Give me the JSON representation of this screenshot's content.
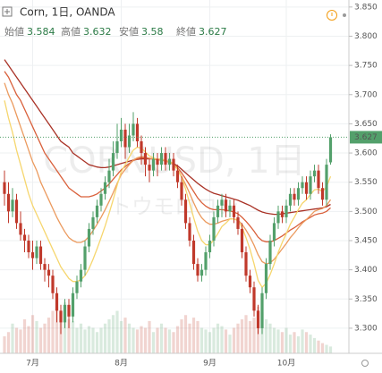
{
  "chart_data": {
    "type": "candlestick",
    "title": "Corn, 1日, OANDA",
    "ohlc_labels": [
      "始値",
      "高値",
      "安値",
      "終値"
    ],
    "watermark": [
      "CORNUSD, 1日",
      "トウモロコシ"
    ],
    "up_color": "#53a06b",
    "down_color": "#c0392b",
    "grid": true,
    "ylim": [
      3.257,
      3.862
    ],
    "yticks": [
      {
        "value": 3.85,
        "label": "3.850"
      },
      {
        "value": 3.8,
        "label": "3.800"
      },
      {
        "value": 3.75,
        "label": "3.750"
      },
      {
        "value": 3.7,
        "label": "3.700"
      },
      {
        "value": 3.65,
        "label": "3.650"
      },
      {
        "value": 3.6,
        "label": "3.600"
      },
      {
        "value": 3.55,
        "label": "3.550"
      },
      {
        "value": 3.5,
        "label": "3.500"
      },
      {
        "value": 3.45,
        "label": "3.450"
      },
      {
        "value": 3.4,
        "label": "3.400"
      },
      {
        "value": 3.35,
        "label": "3.350"
      },
      {
        "value": 3.3,
        "label": "3.300"
      }
    ],
    "categories": [
      null,
      null,
      null,
      null,
      null,
      null,
      null,
      "7月",
      null,
      null,
      null,
      null,
      null,
      null,
      null,
      null,
      null,
      null,
      null,
      null,
      null,
      null,
      null,
      null,
      null,
      null,
      null,
      null,
      null,
      "8月",
      null,
      null,
      null,
      null,
      null,
      null,
      null,
      null,
      null,
      null,
      null,
      null,
      null,
      null,
      null,
      null,
      null,
      null,
      null,
      null,
      null,
      "9月",
      null,
      null,
      null,
      null,
      null,
      null,
      null,
      null,
      null,
      null,
      null,
      null,
      null,
      null,
      null,
      null,
      null,
      null,
      "10月",
      null,
      null,
      null,
      null,
      null,
      null,
      null,
      null,
      null,
      null,
      null
    ],
    "open": [
      3.55,
      3.53,
      3.5,
      3.52,
      3.48,
      3.46,
      3.45,
      3.43,
      3.42,
      3.44,
      3.41,
      3.4,
      3.39,
      3.36,
      3.33,
      3.31,
      3.34,
      3.32,
      3.36,
      3.38,
      3.4,
      3.44,
      3.47,
      3.49,
      3.51,
      3.53,
      3.55,
      3.57,
      3.6,
      3.62,
      3.64,
      3.61,
      3.63,
      3.65,
      3.62,
      3.6,
      3.58,
      3.57,
      3.59,
      3.58,
      3.6,
      3.58,
      3.59,
      3.57,
      3.55,
      3.52,
      3.48,
      3.45,
      3.41,
      3.39,
      3.4,
      3.43,
      3.45,
      3.49,
      3.51,
      3.52,
      3.5,
      3.51,
      3.49,
      3.47,
      3.43,
      3.39,
      3.37,
      3.33,
      3.3,
      3.36,
      3.41,
      3.45,
      3.48,
      3.5,
      3.49,
      3.51,
      3.53,
      3.52,
      3.54,
      3.55,
      3.53,
      3.56,
      3.57,
      3.54,
      3.52,
      3.584
    ],
    "high": [
      3.57,
      3.55,
      3.54,
      3.53,
      3.5,
      3.47,
      3.46,
      3.45,
      3.45,
      3.45,
      3.42,
      3.41,
      3.4,
      3.37,
      3.34,
      3.35,
      3.35,
      3.37,
      3.39,
      3.41,
      3.45,
      3.48,
      3.5,
      3.52,
      3.54,
      3.56,
      3.59,
      3.62,
      3.65,
      3.66,
      3.65,
      3.65,
      3.67,
      3.66,
      3.63,
      3.61,
      3.59,
      3.6,
      3.6,
      3.61,
      3.61,
      3.6,
      3.6,
      3.58,
      3.56,
      3.53,
      3.49,
      3.46,
      3.42,
      3.41,
      3.44,
      3.46,
      3.5,
      3.52,
      3.53,
      3.53,
      3.52,
      3.52,
      3.5,
      3.48,
      3.44,
      3.4,
      3.38,
      3.34,
      3.37,
      3.42,
      3.46,
      3.49,
      3.51,
      3.51,
      3.52,
      3.54,
      3.54,
      3.55,
      3.56,
      3.56,
      3.57,
      3.58,
      3.58,
      3.55,
      3.59,
      3.632
    ],
    "low": [
      3.51,
      3.48,
      3.49,
      3.47,
      3.45,
      3.43,
      3.42,
      3.4,
      3.41,
      3.4,
      3.38,
      3.37,
      3.35,
      3.31,
      3.29,
      3.3,
      3.3,
      3.31,
      3.35,
      3.37,
      3.39,
      3.43,
      3.46,
      3.48,
      3.5,
      3.52,
      3.54,
      3.56,
      3.59,
      3.61,
      3.59,
      3.6,
      3.62,
      3.61,
      3.58,
      3.56,
      3.55,
      3.56,
      3.56,
      3.57,
      3.57,
      3.57,
      3.56,
      3.54,
      3.51,
      3.47,
      3.44,
      3.4,
      3.38,
      3.38,
      3.39,
      3.42,
      3.44,
      3.48,
      3.49,
      3.49,
      3.49,
      3.48,
      3.46,
      3.42,
      3.38,
      3.36,
      3.32,
      3.29,
      3.29,
      3.35,
      3.4,
      3.44,
      3.47,
      3.48,
      3.48,
      3.5,
      3.51,
      3.51,
      3.53,
      3.52,
      3.52,
      3.55,
      3.53,
      3.51,
      3.51,
      3.58
    ],
    "close": [
      3.53,
      3.5,
      3.52,
      3.48,
      3.46,
      3.45,
      3.43,
      3.42,
      3.44,
      3.41,
      3.4,
      3.39,
      3.36,
      3.33,
      3.31,
      3.34,
      3.32,
      3.36,
      3.38,
      3.4,
      3.44,
      3.47,
      3.49,
      3.51,
      3.53,
      3.55,
      3.57,
      3.6,
      3.62,
      3.64,
      3.61,
      3.63,
      3.65,
      3.62,
      3.6,
      3.58,
      3.57,
      3.59,
      3.58,
      3.6,
      3.58,
      3.59,
      3.57,
      3.55,
      3.52,
      3.48,
      3.45,
      3.41,
      3.39,
      3.4,
      3.43,
      3.45,
      3.49,
      3.51,
      3.52,
      3.5,
      3.51,
      3.49,
      3.47,
      3.43,
      3.39,
      3.37,
      3.33,
      3.3,
      3.36,
      3.41,
      3.45,
      3.48,
      3.5,
      3.49,
      3.51,
      3.53,
      3.52,
      3.54,
      3.55,
      3.53,
      3.56,
      3.57,
      3.54,
      3.52,
      3.58,
      3.627
    ],
    "volume": [
      20,
      25,
      35,
      30,
      28,
      40,
      32,
      45,
      38,
      30,
      35,
      42,
      50,
      55,
      48,
      60,
      40,
      38,
      30,
      35,
      28,
      32,
      30,
      25,
      30,
      35,
      40,
      45,
      50,
      38,
      42,
      35,
      30,
      28,
      32,
      30,
      38,
      25,
      30,
      35,
      30,
      28,
      25,
      32,
      40,
      45,
      35,
      42,
      38,
      30,
      28,
      25,
      30,
      35,
      32,
      28,
      22,
      30,
      35,
      40,
      45,
      38,
      42,
      55,
      48,
      40,
      35,
      30,
      28,
      25,
      30,
      22,
      25,
      20,
      28,
      25,
      22,
      18,
      15,
      12,
      10,
      8
    ],
    "volume_lim": [
      0,
      100
    ],
    "series": [
      {
        "color": "#a93226",
        "values": [
          3.76,
          3.75,
          3.74,
          3.73,
          3.72,
          3.71,
          3.7,
          3.69,
          3.68,
          3.67,
          3.66,
          3.65,
          3.64,
          3.63,
          3.62,
          3.615,
          3.61,
          3.6,
          3.595,
          3.59,
          3.585,
          3.58,
          3.578,
          3.576,
          3.575,
          3.575,
          3.576,
          3.578,
          3.58,
          3.582,
          3.584,
          3.586,
          3.588,
          3.589,
          3.59,
          3.59,
          3.59,
          3.59,
          3.589,
          3.588,
          3.587,
          3.585,
          3.582,
          3.578,
          3.572,
          3.566,
          3.56,
          3.554,
          3.548,
          3.543,
          3.538,
          3.534,
          3.531,
          3.529,
          3.527,
          3.525,
          3.523,
          3.521,
          3.519,
          3.516,
          3.513,
          3.51,
          3.506,
          3.502,
          3.499,
          3.497,
          3.496,
          3.495,
          3.495,
          3.496,
          3.497,
          3.498,
          3.499,
          3.5,
          3.501,
          3.502,
          3.503,
          3.504,
          3.505,
          3.506,
          3.508,
          3.512
        ]
      },
      {
        "color": "#d9603b",
        "values": [
          3.74,
          3.73,
          3.715,
          3.7,
          3.69,
          3.675,
          3.66,
          3.645,
          3.63,
          3.615,
          3.6,
          3.59,
          3.58,
          3.57,
          3.56,
          3.55,
          3.54,
          3.535,
          3.53,
          3.525,
          3.525,
          3.525,
          3.527,
          3.53,
          3.535,
          3.54,
          3.547,
          3.555,
          3.563,
          3.571,
          3.577,
          3.582,
          3.587,
          3.59,
          3.592,
          3.592,
          3.591,
          3.59,
          3.589,
          3.588,
          3.587,
          3.585,
          3.581,
          3.575,
          3.566,
          3.556,
          3.545,
          3.534,
          3.523,
          3.515,
          3.509,
          3.505,
          3.503,
          3.503,
          3.503,
          3.502,
          3.501,
          3.499,
          3.496,
          3.49,
          3.483,
          3.475,
          3.466,
          3.456,
          3.45,
          3.448,
          3.448,
          3.45,
          3.454,
          3.458,
          3.463,
          3.468,
          3.472,
          3.477,
          3.482,
          3.486,
          3.49,
          3.494,
          3.496,
          3.497,
          3.5,
          3.506
        ]
      },
      {
        "color": "#eb9a5e",
        "values": [
          3.72,
          3.7,
          3.685,
          3.665,
          3.645,
          3.625,
          3.605,
          3.585,
          3.57,
          3.55,
          3.535,
          3.52,
          3.505,
          3.49,
          3.477,
          3.465,
          3.455,
          3.45,
          3.447,
          3.447,
          3.45,
          3.457,
          3.467,
          3.478,
          3.49,
          3.503,
          3.517,
          3.532,
          3.548,
          3.563,
          3.572,
          3.58,
          3.588,
          3.592,
          3.594,
          3.593,
          3.591,
          3.59,
          3.588,
          3.588,
          3.586,
          3.584,
          3.58,
          3.572,
          3.56,
          3.546,
          3.531,
          3.515,
          3.5,
          3.489,
          3.482,
          3.478,
          3.478,
          3.48,
          3.483,
          3.485,
          3.487,
          3.487,
          3.485,
          3.478,
          3.468,
          3.456,
          3.442,
          3.426,
          3.414,
          3.41,
          3.412,
          3.418,
          3.427,
          3.436,
          3.445,
          3.455,
          3.463,
          3.472,
          3.48,
          3.486,
          3.493,
          3.5,
          3.503,
          3.505,
          3.51,
          3.52
        ]
      },
      {
        "color": "#f6d66e",
        "values": [
          3.69,
          3.66,
          3.635,
          3.605,
          3.58,
          3.555,
          3.53,
          3.51,
          3.495,
          3.48,
          3.465,
          3.45,
          3.435,
          3.42,
          3.405,
          3.395,
          3.385,
          3.38,
          3.38,
          3.383,
          3.39,
          3.402,
          3.418,
          3.436,
          3.455,
          3.475,
          3.497,
          3.52,
          3.545,
          3.568,
          3.58,
          3.593,
          3.605,
          3.61,
          3.608,
          3.602,
          3.595,
          3.592,
          3.589,
          3.59,
          3.587,
          3.586,
          3.581,
          3.572,
          3.558,
          3.538,
          3.514,
          3.489,
          3.466,
          3.45,
          3.443,
          3.443,
          3.451,
          3.462,
          3.474,
          3.48,
          3.487,
          3.487,
          3.484,
          3.473,
          3.455,
          3.435,
          3.41,
          3.382,
          3.37,
          3.377,
          3.392,
          3.41,
          3.43,
          3.447,
          3.462,
          3.478,
          3.49,
          3.503,
          3.514,
          3.52,
          3.529,
          3.537,
          3.538,
          3.534,
          3.542,
          3.56
        ]
      }
    ]
  }
}
